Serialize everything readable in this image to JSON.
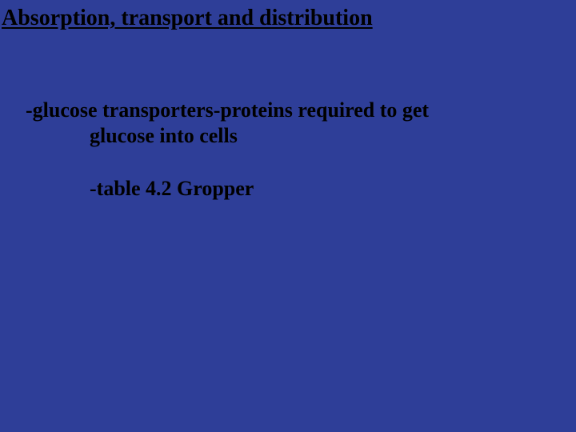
{
  "slide": {
    "background_color": "#2e3e98",
    "text_color": "#000000",
    "font_family": "Times New Roman",
    "title": "Absorption, transport and distribution",
    "title_fontsize": 28,
    "title_underline": true,
    "body_fontsize": 26,
    "bullets": {
      "b1_prefix": "-",
      "b1_bold_phrase": "glucose transporters",
      "b1_rest": "-proteins required to get",
      "b1_cont": "glucose into cells",
      "b2": "-table 4.2 Gropper"
    }
  }
}
